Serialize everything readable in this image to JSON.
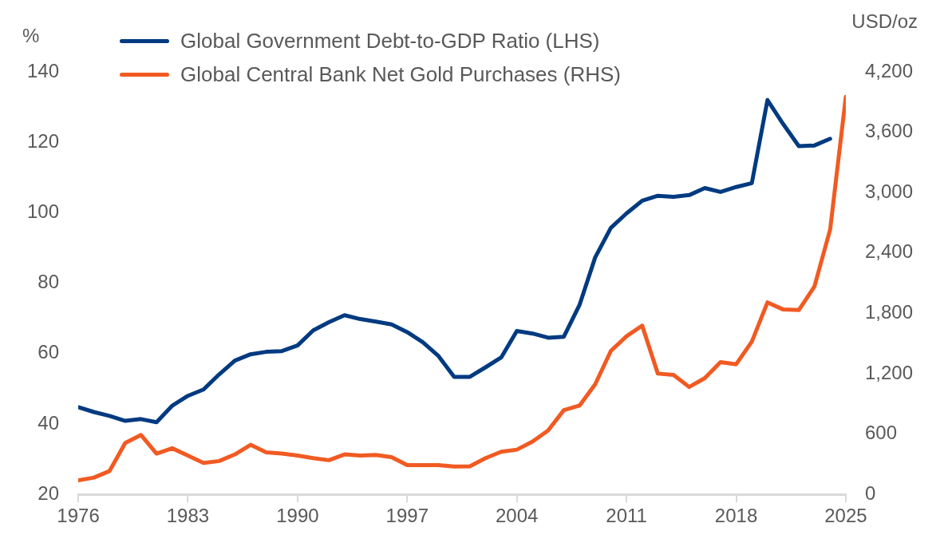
{
  "chart_data": {
    "type": "line",
    "ylabel": "%",
    "y2label": "USD/oz",
    "xlim": [
      1976,
      2025
    ],
    "xticks": [
      1976,
      1983,
      1990,
      1997,
      2004,
      2011,
      2018,
      2025
    ],
    "ylim": [
      20,
      140
    ],
    "yticks": [
      20,
      40,
      60,
      80,
      100,
      120,
      140
    ],
    "y2lim": [
      0,
      4200
    ],
    "y2ticks": [
      0,
      {
        "value": 600,
        "label": "600"
      },
      {
        "value": 1200,
        "label": "1,200"
      },
      {
        "value": 1800,
        "label": "1,800"
      },
      {
        "value": 2400,
        "label": "2,400"
      },
      {
        "value": 3000,
        "label": "3,000"
      },
      {
        "value": 3600,
        "label": "3,600"
      },
      {
        "value": 4200,
        "label": "4,200"
      }
    ],
    "grid": false,
    "legend": "top",
    "line_style": "solid",
    "marker": "none",
    "series": [
      {
        "name": "Global Government Debt-to-GDP Ratio (LHS)",
        "color": "#003a80",
        "x": [
          1976,
          1977,
          1978,
          1979,
          1980,
          1981,
          1982,
          1983,
          1984,
          1985,
          1986,
          1987,
          1988,
          1989,
          1990,
          1991,
          1992,
          1993,
          1994,
          1995,
          1996,
          1997,
          1998,
          1999,
          2000,
          2001,
          2002,
          2003,
          2004,
          2005,
          2006,
          2007,
          2008,
          2009,
          2010,
          2011,
          2012,
          2013,
          2014,
          2015,
          2016,
          2017,
          2018,
          2019,
          2020,
          2021,
          2022,
          2023,
          2024
        ],
        "values": [
          44.8,
          43.4,
          42.3,
          40.9,
          41.4,
          40.5,
          45.2,
          48,
          49.8,
          54.1,
          58,
          59.8,
          60.5,
          60.7,
          62.3,
          66.6,
          68.9,
          70.9,
          69.8,
          69.1,
          68.3,
          66.1,
          63.2,
          59.3,
          53.4,
          53.4,
          56.1,
          58.9,
          66.4,
          65.7,
          64.5,
          64.8,
          73.8,
          87.3,
          95.7,
          99.8,
          103.4,
          104.8,
          104.5,
          105,
          107,
          105.9,
          107.3,
          108.4,
          132,
          125.2,
          118.9,
          119.1,
          121
        ]
      },
      {
        "name": "Global Central Bank Net Gold Purchases (RHS)",
        "color": "#f15a22",
        "axis": "y2",
        "x": [
          1976,
          1977,
          1978,
          1979,
          1980,
          1981,
          1982,
          1983,
          1984,
          1985,
          1986,
          1987,
          1988,
          1989,
          1990,
          1991,
          1992,
          1993,
          1994,
          1995,
          1996,
          1997,
          1998,
          1999,
          2000,
          2001,
          2002,
          2003,
          2004,
          2005,
          2006,
          2007,
          2008,
          2009,
          2010,
          2011,
          2012,
          2013,
          2014,
          2015,
          2016,
          2017,
          2018,
          2019,
          2020,
          2021,
          2022,
          2023,
          2024,
          2025
        ],
        "values": [
          140,
          167,
          233,
          512,
          591,
          406,
          459,
          387,
          313,
          332,
          398,
          493,
          419,
          406,
          387,
          361,
          340,
          398,
          387,
          392,
          371,
          292,
          292,
          292,
          278,
          280,
          361,
          424,
          445,
          525,
          636,
          838,
          883,
          1095,
          1426,
          1572,
          1678,
          1201,
          1188,
          1068,
          1156,
          1315,
          1294,
          1519,
          1909,
          1838,
          1832,
          2068,
          2633,
          3951
        ]
      }
    ]
  }
}
